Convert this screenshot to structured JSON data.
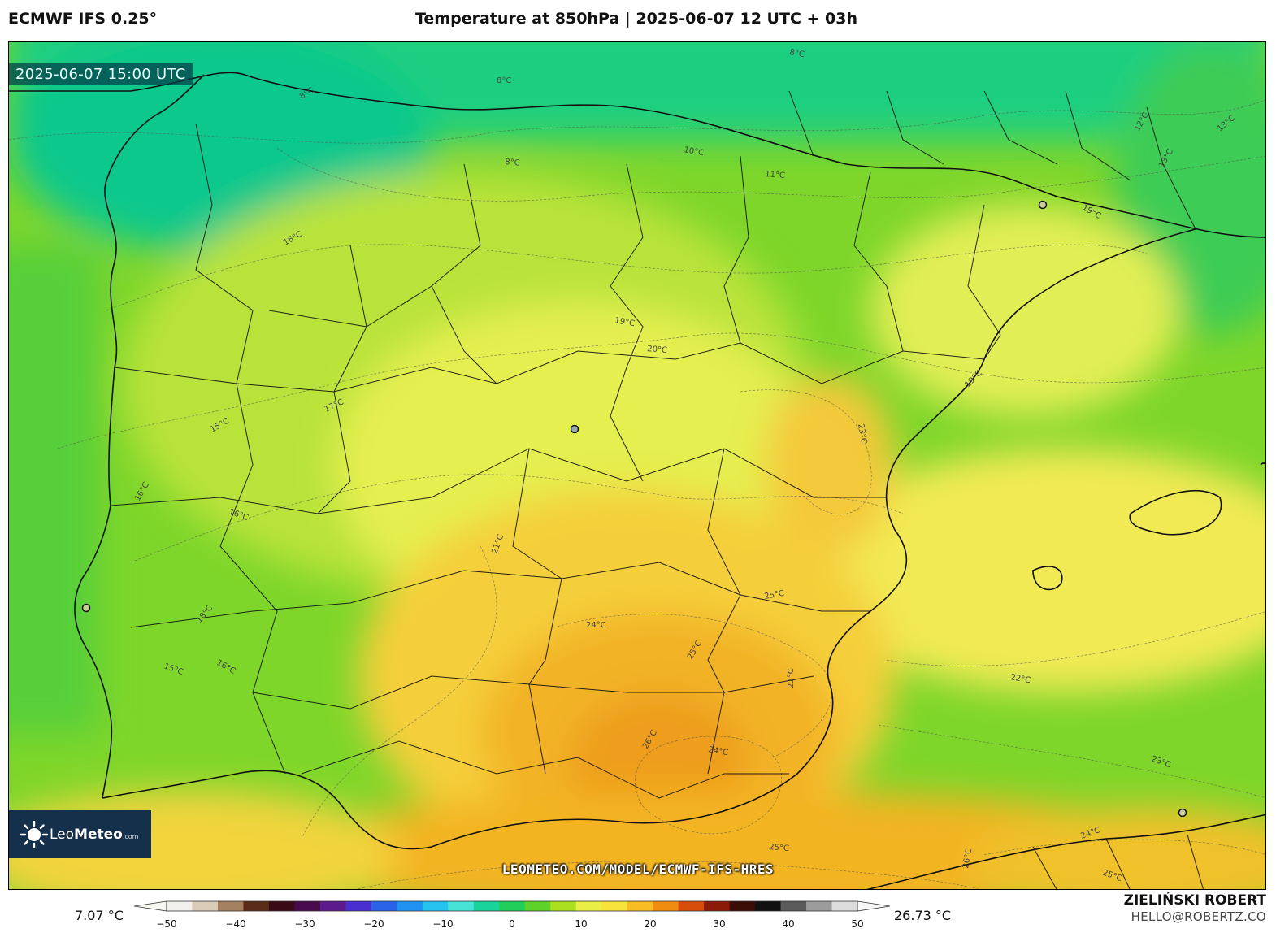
{
  "header": {
    "model": "ECMWF IFS 0.25°",
    "title": "Temperature at 850hPa | 2025-06-07 12 UTC + 03h"
  },
  "map": {
    "valid_time": "2025-06-07 15:00 UTC",
    "source_url": "LEOMETEO.COM/MODEL/ECMWF-IFS-HRES",
    "region": "Iberian Peninsula",
    "contour_labels": [
      "8°C",
      "8°C",
      "8°C",
      "8°C",
      "10°C",
      "11°C",
      "12°C",
      "13°C",
      "13°C",
      "16°C",
      "17°C",
      "15°C",
      "16°C",
      "16°C",
      "18°C",
      "15°C",
      "16°C",
      "20°C",
      "19°C",
      "19°C",
      "19°C",
      "21°C",
      "23°C",
      "24°C",
      "25°C",
      "25°C",
      "22°C",
      "22°C",
      "23°C",
      "24°C",
      "26°C",
      "25°C",
      "24°C",
      "25°C",
      "26°C"
    ]
  },
  "logo": {
    "brand_a": "Leo",
    "brand_b": "Meteo",
    "suffix": ".com"
  },
  "colorbar": {
    "min_label": "7.07 °C",
    "max_label": "26.73 °C",
    "ticks": [
      "−50",
      "−40",
      "−30",
      "−20",
      "−10",
      "0",
      "10",
      "20",
      "30",
      "40",
      "50"
    ],
    "colors": [
      "#f2f0ec",
      "#d9cbb8",
      "#a3805f",
      "#5a2c18",
      "#3a0a16",
      "#4a0a4e",
      "#5c1a8c",
      "#4a2fd0",
      "#2a62e8",
      "#1f92f2",
      "#26c2f0",
      "#46e4d6",
      "#18d39a",
      "#20cf5a",
      "#5fd22a",
      "#aadf1e",
      "#e9ef44",
      "#f7e33a",
      "#f7bd22",
      "#f08c10",
      "#d84c0a",
      "#8c1a08",
      "#3a0c06",
      "#111111",
      "#5a5a5a",
      "#9c9c9c",
      "#dcdcdc"
    ]
  },
  "credits": {
    "author": "ZIELIŃSKI ROBERT",
    "email": "HELLO@ROBERTZ.CO"
  }
}
